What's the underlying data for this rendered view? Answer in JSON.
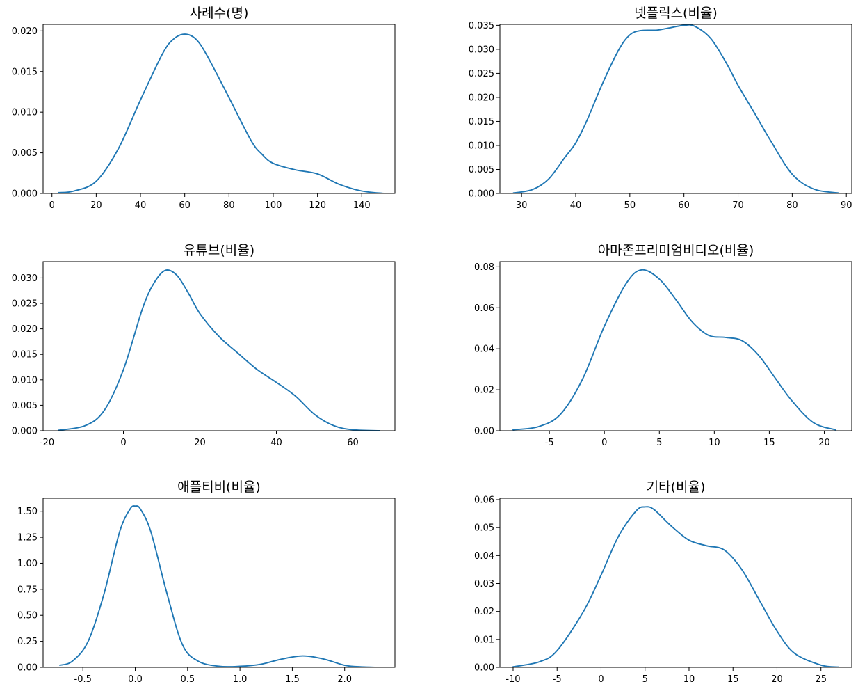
{
  "colors": {
    "line": "#1f77b4",
    "axes": "#000000",
    "background": "#ffffff"
  },
  "chart_data": [
    {
      "type": "line",
      "title": "사례수(명)",
      "xlabel": "",
      "ylabel": "",
      "xlim": [
        -4,
        155
      ],
      "ylim": [
        0,
        0.0208
      ],
      "xticks": [
        0,
        20,
        40,
        60,
        80,
        100,
        120,
        140
      ],
      "yticks": [
        0,
        0.005,
        0.01,
        0.015,
        0.02
      ],
      "yticklabels": [
        "0.000",
        "0.005",
        "0.010",
        "0.015",
        "0.020"
      ],
      "series": [
        {
          "name": "kde",
          "x": [
            3,
            10,
            20,
            30,
            40,
            50,
            55,
            60,
            65,
            70,
            80,
            90,
            95,
            100,
            110,
            120,
            130,
            140,
            150
          ],
          "y": [
            0.0001,
            0.0003,
            0.0015,
            0.0055,
            0.0115,
            0.0172,
            0.019,
            0.0196,
            0.019,
            0.017,
            0.0118,
            0.0065,
            0.0048,
            0.0037,
            0.0029,
            0.0024,
            0.0011,
            0.0003,
            0.0
          ]
        }
      ]
    },
    {
      "type": "line",
      "title": "넷플릭스(비율)",
      "xlabel": "",
      "ylabel": "",
      "xlim": [
        26,
        91
      ],
      "ylim": [
        0,
        0.0352
      ],
      "xticks": [
        30,
        40,
        50,
        60,
        70,
        80,
        90
      ],
      "yticks": [
        0,
        0.005,
        0.01,
        0.015,
        0.02,
        0.025,
        0.03,
        0.035
      ],
      "yticklabels": [
        "0.000",
        "0.005",
        "0.010",
        "0.015",
        "0.020",
        "0.025",
        "0.030",
        "0.035"
      ],
      "series": [
        {
          "name": "kde",
          "x": [
            28.5,
            32,
            35,
            38,
            40,
            42,
            45,
            48,
            50,
            52,
            55,
            57,
            60,
            62,
            65,
            68,
            70,
            73,
            76,
            80,
            84,
            88.5
          ],
          "y": [
            0.0001,
            0.0008,
            0.003,
            0.0075,
            0.0105,
            0.015,
            0.023,
            0.03,
            0.033,
            0.0339,
            0.034,
            0.0344,
            0.035,
            0.0348,
            0.0322,
            0.0268,
            0.0225,
            0.0168,
            0.011,
            0.004,
            0.0009,
            0.0001
          ]
        }
      ]
    },
    {
      "type": "line",
      "title": "유튜브(비율)",
      "xlabel": "",
      "ylabel": "",
      "xlim": [
        -21,
        71
      ],
      "ylim": [
        0,
        0.0332
      ],
      "xticks": [
        -20,
        0,
        20,
        40,
        60
      ],
      "yticks": [
        0,
        0.005,
        0.01,
        0.015,
        0.02,
        0.025,
        0.03
      ],
      "yticklabels": [
        "0.000",
        "0.005",
        "0.010",
        "0.015",
        "0.020",
        "0.025",
        "0.030"
      ],
      "series": [
        {
          "name": "kde",
          "x": [
            -17,
            -10,
            -5,
            0,
            5,
            8,
            11,
            14,
            17,
            20,
            25,
            30,
            35,
            40,
            45,
            50,
            55,
            60,
            67
          ],
          "y": [
            0.0001,
            0.001,
            0.004,
            0.012,
            0.024,
            0.029,
            0.0315,
            0.0305,
            0.027,
            0.023,
            0.0185,
            0.0152,
            0.012,
            0.0095,
            0.0068,
            0.0032,
            0.001,
            0.0002,
            0.0
          ]
        }
      ]
    },
    {
      "type": "line",
      "title": "아마존프리미엄비디오(비율)",
      "xlabel": "",
      "ylabel": "",
      "xlim": [
        -9.5,
        22.5
      ],
      "ylim": [
        0,
        0.0825
      ],
      "xticks": [
        -5,
        0,
        5,
        10,
        15,
        20
      ],
      "yticks": [
        0,
        0.02,
        0.04,
        0.06,
        0.08
      ],
      "yticklabels": [
        "0.00",
        "0.02",
        "0.04",
        "0.06",
        "0.08"
      ],
      "series": [
        {
          "name": "kde",
          "x": [
            -8.3,
            -6,
            -4,
            -2,
            0,
            2,
            3.4,
            5,
            6.5,
            8,
            9.5,
            11,
            12.5,
            14,
            15.5,
            17,
            19,
            21
          ],
          "y": [
            0.0005,
            0.002,
            0.008,
            0.025,
            0.051,
            0.072,
            0.0785,
            0.074,
            0.064,
            0.053,
            0.0465,
            0.0455,
            0.044,
            0.037,
            0.026,
            0.015,
            0.004,
            0.0005
          ]
        }
      ]
    },
    {
      "type": "line",
      "title": "애플티비(비율)",
      "xlabel": "",
      "ylabel": "",
      "xlim": [
        -0.88,
        2.48
      ],
      "ylim": [
        0,
        1.625
      ],
      "xticks": [
        -0.5,
        0.0,
        0.5,
        1.0,
        1.5,
        2.0
      ],
      "xticklabels": [
        "-0.5",
        "0.0",
        "0.5",
        "1.0",
        "1.5",
        "2.0"
      ],
      "yticks": [
        0,
        0.25,
        0.5,
        0.75,
        1.0,
        1.25,
        1.5
      ],
      "yticklabels": [
        "0.00",
        "0.25",
        "0.50",
        "0.75",
        "1.00",
        "1.25",
        "1.50"
      ],
      "series": [
        {
          "name": "kde",
          "x": [
            -0.72,
            -0.6,
            -0.45,
            -0.3,
            -0.15,
            -0.05,
            0,
            0.05,
            0.15,
            0.3,
            0.45,
            0.6,
            0.8,
            1.0,
            1.2,
            1.4,
            1.6,
            1.8,
            2.0,
            2.15,
            2.32
          ],
          "y": [
            0.02,
            0.06,
            0.25,
            0.7,
            1.3,
            1.52,
            1.55,
            1.52,
            1.3,
            0.72,
            0.22,
            0.06,
            0.01,
            0.01,
            0.03,
            0.08,
            0.11,
            0.08,
            0.02,
            0.005,
            0.0
          ]
        }
      ]
    },
    {
      "type": "line",
      "title": "기타(비율)",
      "xlabel": "",
      "ylabel": "",
      "xlim": [
        -11.5,
        28.5
      ],
      "ylim": [
        0,
        0.0605
      ],
      "xticks": [
        -10,
        -5,
        0,
        5,
        10,
        15,
        20,
        25
      ],
      "yticks": [
        0,
        0.01,
        0.02,
        0.03,
        0.04,
        0.05,
        0.06
      ],
      "yticklabels": [
        "0.00",
        "0.01",
        "0.02",
        "0.03",
        "0.04",
        "0.05",
        "0.06"
      ],
      "series": [
        {
          "name": "kde",
          "x": [
            -10,
            -7,
            -5,
            -2,
            0,
            2,
            4,
            5,
            6,
            8,
            10,
            12,
            14,
            16,
            18,
            20,
            22,
            25,
            27
          ],
          "y": [
            0.0002,
            0.002,
            0.006,
            0.02,
            0.033,
            0.047,
            0.056,
            0.0574,
            0.0565,
            0.0505,
            0.0455,
            0.0435,
            0.042,
            0.035,
            0.024,
            0.013,
            0.005,
            0.0008,
            0.0001
          ]
        }
      ]
    }
  ]
}
